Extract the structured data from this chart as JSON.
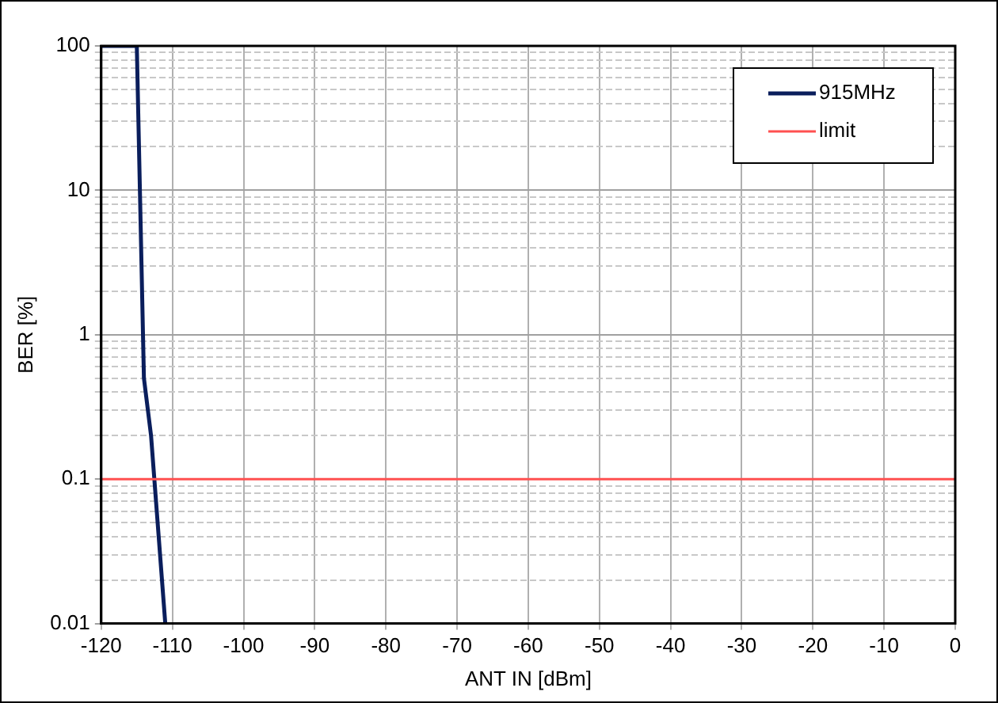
{
  "chart_data": {
    "type": "line",
    "xlabel": "ANT IN [dBm]",
    "ylabel": "BER [%]",
    "x": [
      -120,
      -115,
      -114,
      -113,
      -111
    ],
    "series": [
      {
        "name": "915MHz",
        "color": "#0a1e5c",
        "values": [
          100,
          100,
          0.5,
          0.2,
          0.01
        ]
      }
    ],
    "ref_lines": [
      {
        "axis": "y",
        "value": 0.1,
        "label": "limit",
        "color": "#ff5050"
      }
    ],
    "xlim": [
      -120,
      0
    ],
    "xticks": [
      -120,
      -110,
      -100,
      -90,
      -80,
      -70,
      -60,
      -50,
      -40,
      -30,
      -20,
      -10,
      0
    ],
    "log": "y",
    "ylim": [
      0.01,
      100
    ],
    "yticks": [
      0.01,
      {
        "value": 0.02,
        "label": null
      },
      {
        "value": 0.03,
        "label": null
      },
      {
        "value": 0.04,
        "label": null
      },
      {
        "value": 0.05,
        "label": null
      },
      {
        "value": 0.06,
        "label": null
      },
      {
        "value": 0.07,
        "label": null
      },
      {
        "value": 0.08,
        "label": null
      },
      {
        "value": 0.09,
        "label": null
      },
      0.1,
      {
        "value": 0.2,
        "label": null
      },
      {
        "value": 0.3,
        "label": null
      },
      {
        "value": 0.4,
        "label": null
      },
      {
        "value": 0.5,
        "label": null
      },
      {
        "value": 0.6,
        "label": null
      },
      {
        "value": 0.7,
        "label": null
      },
      {
        "value": 0.8,
        "label": null
      },
      {
        "value": 0.9,
        "label": null
      },
      1,
      {
        "value": 2,
        "label": null
      },
      {
        "value": 3,
        "label": null
      },
      {
        "value": 4,
        "label": null
      },
      {
        "value": 5,
        "label": null
      },
      {
        "value": 6,
        "label": null
      },
      {
        "value": 7,
        "label": null
      },
      {
        "value": 8,
        "label": null
      },
      {
        "value": 9,
        "label": null
      },
      10,
      {
        "value": 20,
        "label": null
      },
      {
        "value": 30,
        "label": null
      },
      {
        "value": 40,
        "label": null
      },
      {
        "value": 50,
        "label": null
      },
      {
        "value": 60,
        "label": null
      },
      {
        "value": 70,
        "label": null
      },
      {
        "value": 80,
        "label": null
      },
      {
        "value": 90,
        "label": null
      },
      100
    ],
    "grid": true,
    "legend": "top right",
    "marker": "none",
    "line_style": "solid"
  }
}
